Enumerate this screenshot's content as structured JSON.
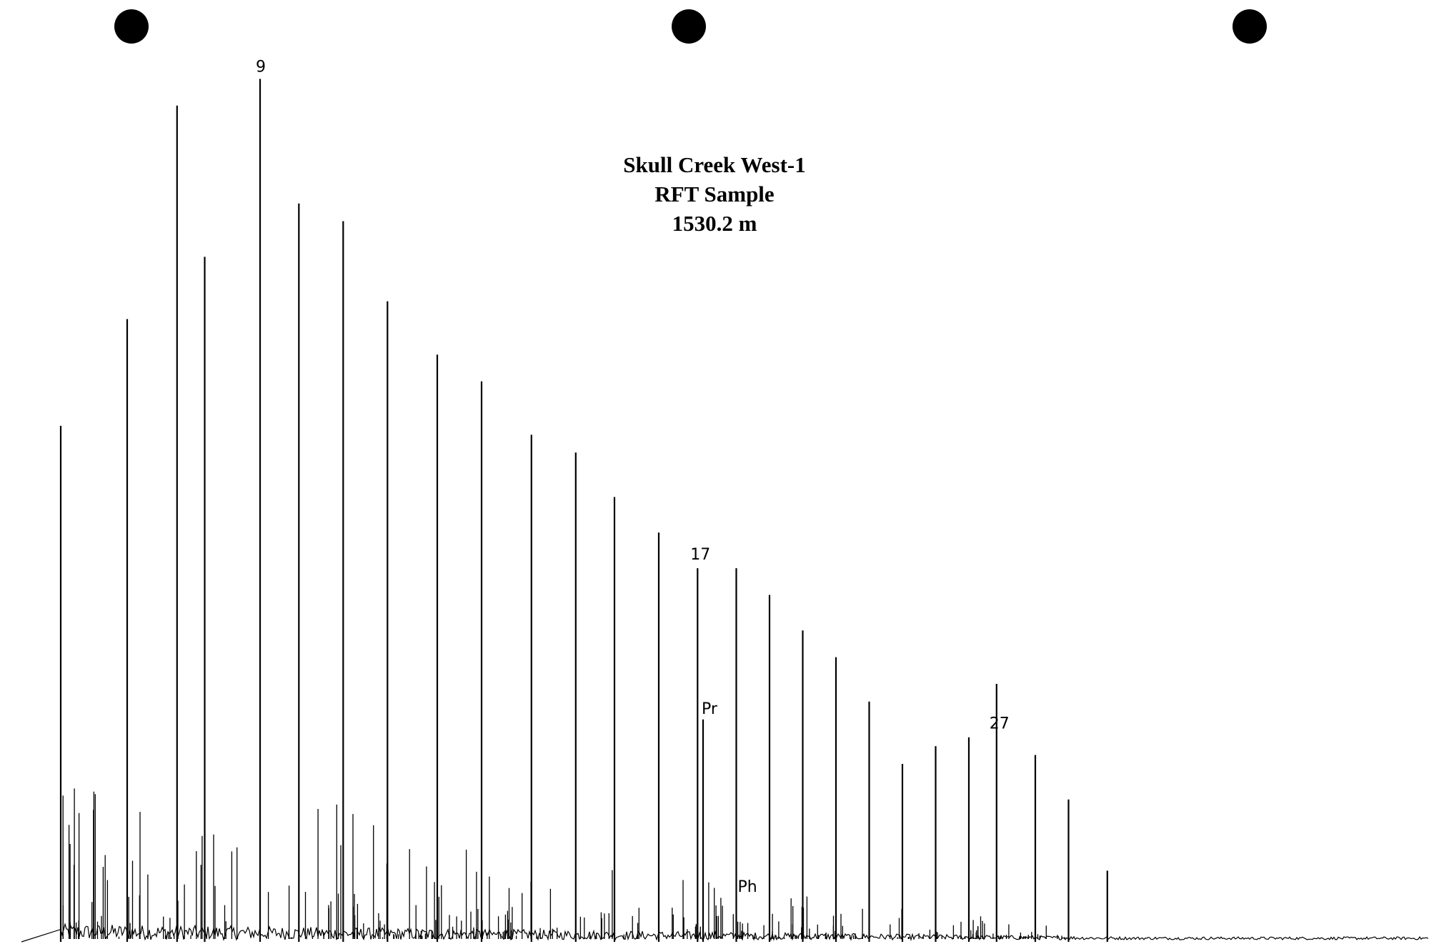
{
  "chart_data": {
    "type": "line",
    "chart_kind": "gas chromatogram",
    "title_lines": [
      "Skull Creek West-1",
      "RFT Sample",
      "1530.2 m"
    ],
    "axes_visible": false,
    "grid": false,
    "line_color": "#000000",
    "annotations": [
      {
        "label": "9",
        "peak": "n-C9"
      },
      {
        "label": "17",
        "peak": "n-C17"
      },
      {
        "label": "Pr",
        "peak": "pristane"
      },
      {
        "label": "Ph",
        "peak": "phytane"
      },
      {
        "label": "27",
        "peak": "n-C27"
      }
    ],
    "peaks": [
      {
        "x": 1,
        "h": 0.58
      },
      {
        "x": 2.2,
        "h": 0.7
      },
      {
        "x": 3.1,
        "h": 0.94
      },
      {
        "x": 3.6,
        "h": 0.77
      },
      {
        "x": 4.6,
        "h": 0.97
      },
      {
        "x": 5.3,
        "h": 0.83
      },
      {
        "x": 6.1,
        "h": 0.81
      },
      {
        "x": 6.9,
        "h": 0.72
      },
      {
        "x": 7.8,
        "h": 0.66
      },
      {
        "x": 8.6,
        "h": 0.63
      },
      {
        "x": 9.5,
        "h": 0.57
      },
      {
        "x": 10.3,
        "h": 0.55
      },
      {
        "x": 11.0,
        "h": 0.5
      },
      {
        "x": 11.8,
        "h": 0.46
      },
      {
        "x": 12.5,
        "h": 0.42
      },
      {
        "x": 12.6,
        "h": 0.25
      },
      {
        "x": 13.2,
        "h": 0.42
      },
      {
        "x": 13.8,
        "h": 0.39
      },
      {
        "x": 14.4,
        "h": 0.35
      },
      {
        "x": 15.0,
        "h": 0.32
      },
      {
        "x": 15.6,
        "h": 0.27
      },
      {
        "x": 16.2,
        "h": 0.2
      },
      {
        "x": 16.8,
        "h": 0.22
      },
      {
        "x": 17.4,
        "h": 0.23
      },
      {
        "x": 17.9,
        "h": 0.29
      },
      {
        "x": 18.6,
        "h": 0.21
      },
      {
        "x": 19.2,
        "h": 0.16
      },
      {
        "x": 19.9,
        "h": 0.08
      }
    ]
  }
}
